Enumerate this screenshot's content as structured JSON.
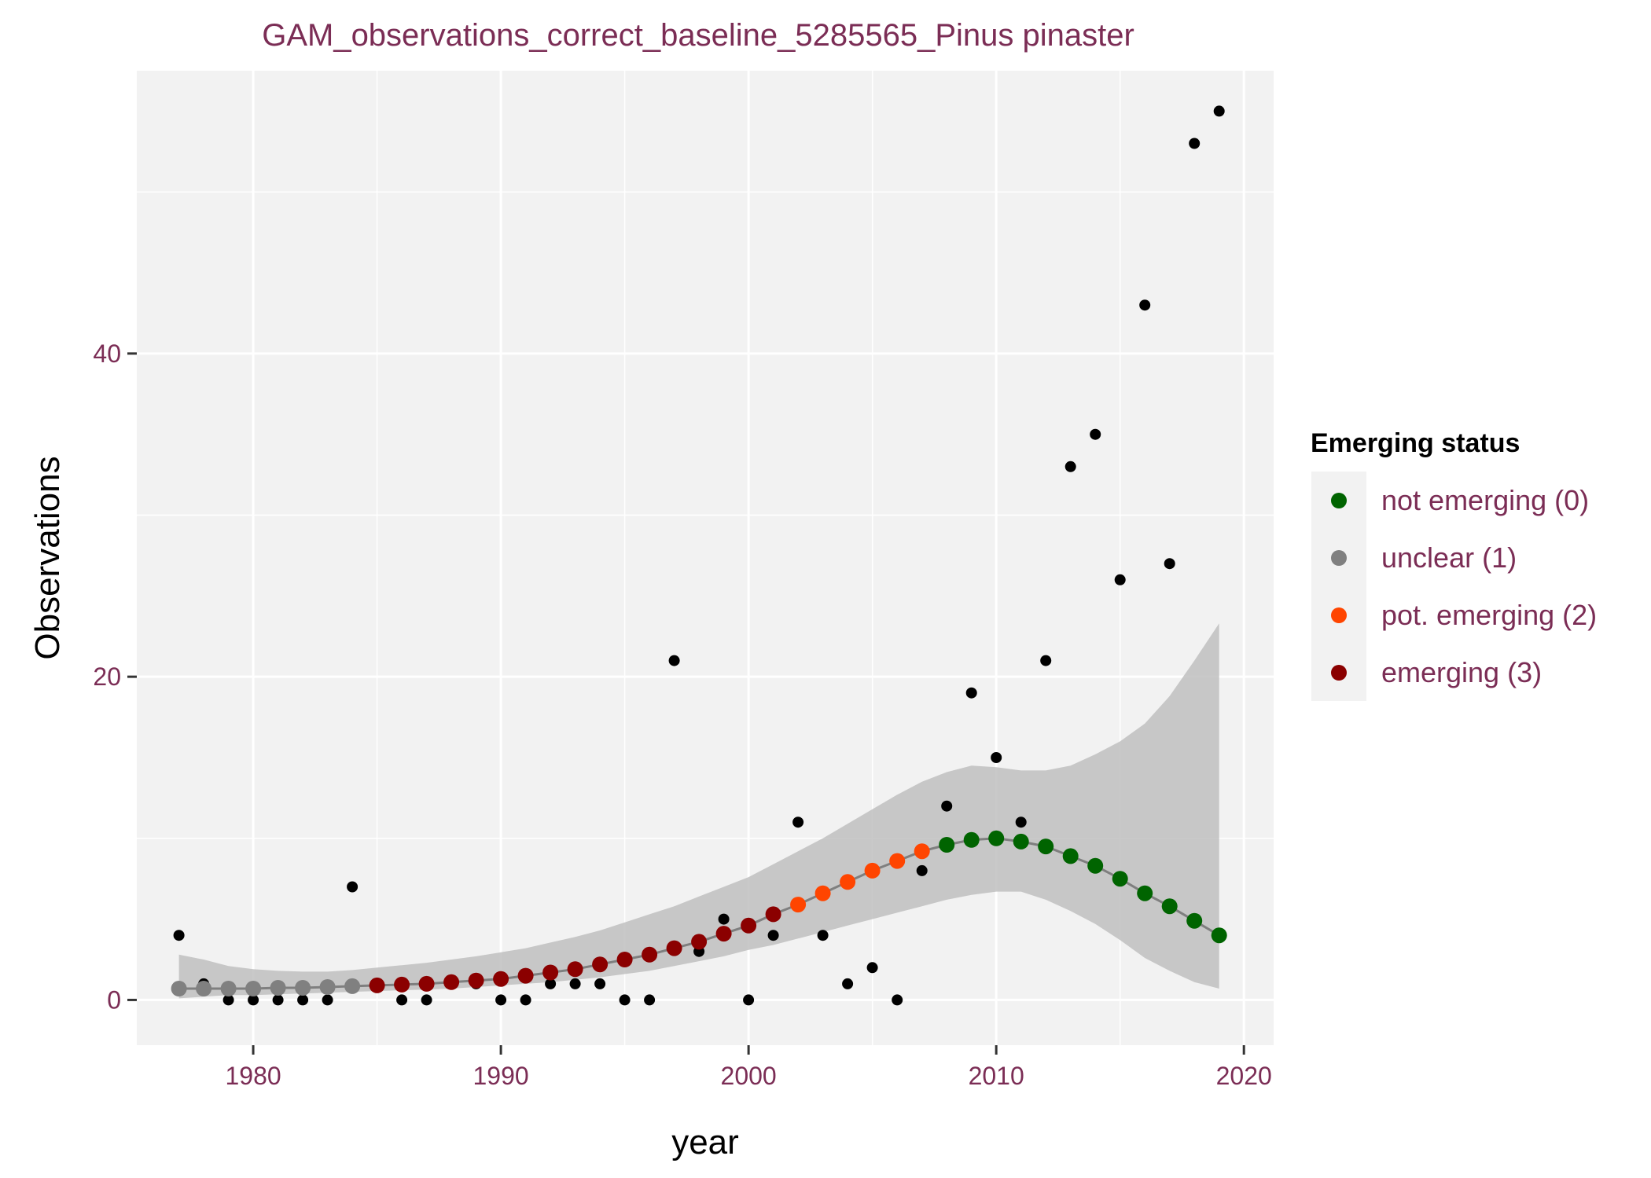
{
  "chart_data": {
    "type": "scatter",
    "title": "GAM_observations_correct_baseline_5285565_Pinus pinaster",
    "xlabel": "year",
    "ylabel": "Observations",
    "xlim": [
      1975.3,
      2021.2
    ],
    "ylim": [
      -2.8,
      57.5
    ],
    "x_ticks": [
      1980,
      1990,
      2000,
      2010,
      2020
    ],
    "x_tick_labels": [
      "1980",
      "1990",
      "2000",
      "2010",
      "2020"
    ],
    "y_ticks": [
      0,
      20,
      40
    ],
    "y_tick_labels": [
      "0",
      "20",
      "40"
    ],
    "grid": true,
    "legend_position": "right",
    "legend": {
      "title": "Emerging status",
      "items": [
        {
          "label": "not emerging (0)",
          "color": "#006400"
        },
        {
          "label": "unclear (1)",
          "color": "#808080"
        },
        {
          "label": "pot. emerging (2)",
          "color": "#FF4500"
        },
        {
          "label": "emerging (3)",
          "color": "#8B0000"
        }
      ]
    },
    "colors": {
      "title_text": "#7b2d55",
      "tick_text": "#7b2d55",
      "legend_text": "#7b2d55",
      "panel_background": "#f2f2f2",
      "grid": "#ffffff",
      "ribbon": "#bfbfbf",
      "fit_line": "#7f7f7f",
      "observation_point": "#000000",
      "status": {
        "0": "#006400",
        "1": "#808080",
        "2": "#FF4500",
        "3": "#8B0000"
      }
    },
    "observations": {
      "x": [
        1977,
        1978,
        1979,
        1980,
        1981,
        1982,
        1983,
        1984,
        1985,
        1986,
        1987,
        1988,
        1989,
        1990,
        1991,
        1992,
        1993,
        1994,
        1995,
        1996,
        1997,
        1998,
        1999,
        2000,
        2001,
        2002,
        2003,
        2004,
        2005,
        2006,
        2007,
        2008,
        2009,
        2010,
        2011,
        2012,
        2013,
        2014,
        2015,
        2016,
        2017,
        2018,
        2019
      ],
      "y": [
        4,
        1,
        0,
        0,
        0,
        0,
        0,
        7,
        1,
        0,
        0,
        1,
        1,
        0,
        0,
        1,
        1,
        1,
        0,
        0,
        21,
        3,
        5,
        0,
        4,
        11,
        4,
        1,
        2,
        0,
        8,
        12,
        19,
        15,
        11,
        21,
        33,
        35,
        26,
        43,
        27,
        53,
        55
      ]
    },
    "gam_fit": {
      "x": [
        1977,
        1978,
        1979,
        1980,
        1981,
        1982,
        1983,
        1984,
        1985,
        1986,
        1987,
        1988,
        1989,
        1990,
        1991,
        1992,
        1993,
        1994,
        1995,
        1996,
        1997,
        1998,
        1999,
        2000,
        2001,
        2002,
        2003,
        2004,
        2005,
        2006,
        2007,
        2008,
        2009,
        2010,
        2011,
        2012,
        2013,
        2014,
        2015,
        2016,
        2017,
        2018,
        2019
      ],
      "fit": [
        0.7,
        0.7,
        0.7,
        0.7,
        0.75,
        0.75,
        0.8,
        0.85,
        0.9,
        0.95,
        1.0,
        1.1,
        1.2,
        1.3,
        1.5,
        1.7,
        1.9,
        2.2,
        2.5,
        2.8,
        3.2,
        3.6,
        4.1,
        4.6,
        5.3,
        5.9,
        6.6,
        7.3,
        8.0,
        8.6,
        9.2,
        9.6,
        9.9,
        10.0,
        9.8,
        9.5,
        8.9,
        8.3,
        7.5,
        6.6,
        5.8,
        4.9,
        4.0
      ],
      "lower": [
        0.1,
        0.2,
        0.3,
        0.3,
        0.35,
        0.4,
        0.45,
        0.5,
        0.55,
        0.6,
        0.65,
        0.7,
        0.8,
        0.9,
        1.0,
        1.1,
        1.25,
        1.4,
        1.6,
        1.8,
        2.1,
        2.4,
        2.7,
        3.1,
        3.4,
        3.8,
        4.2,
        4.6,
        5.0,
        5.4,
        5.8,
        6.2,
        6.5,
        6.7,
        6.7,
        6.2,
        5.5,
        4.7,
        3.7,
        2.6,
        1.8,
        1.1,
        0.7
      ],
      "upper": [
        2.8,
        2.5,
        2.1,
        1.9,
        1.8,
        1.75,
        1.75,
        1.85,
        2.0,
        2.15,
        2.3,
        2.5,
        2.7,
        2.95,
        3.2,
        3.55,
        3.9,
        4.3,
        4.8,
        5.3,
        5.8,
        6.4,
        7.0,
        7.6,
        8.4,
        9.2,
        10.0,
        10.9,
        11.8,
        12.7,
        13.5,
        14.1,
        14.5,
        14.4,
        14.2,
        14.2,
        14.5,
        15.2,
        16.0,
        17.1,
        18.8,
        21.0,
        23.3
      ],
      "status": [
        1,
        1,
        1,
        1,
        1,
        1,
        1,
        1,
        3,
        3,
        3,
        3,
        3,
        3,
        3,
        3,
        3,
        3,
        3,
        3,
        3,
        3,
        3,
        3,
        3,
        2,
        2,
        2,
        2,
        2,
        2,
        0,
        0,
        0,
        0,
        0,
        0,
        0,
        0,
        0,
        0,
        0,
        0
      ]
    }
  }
}
